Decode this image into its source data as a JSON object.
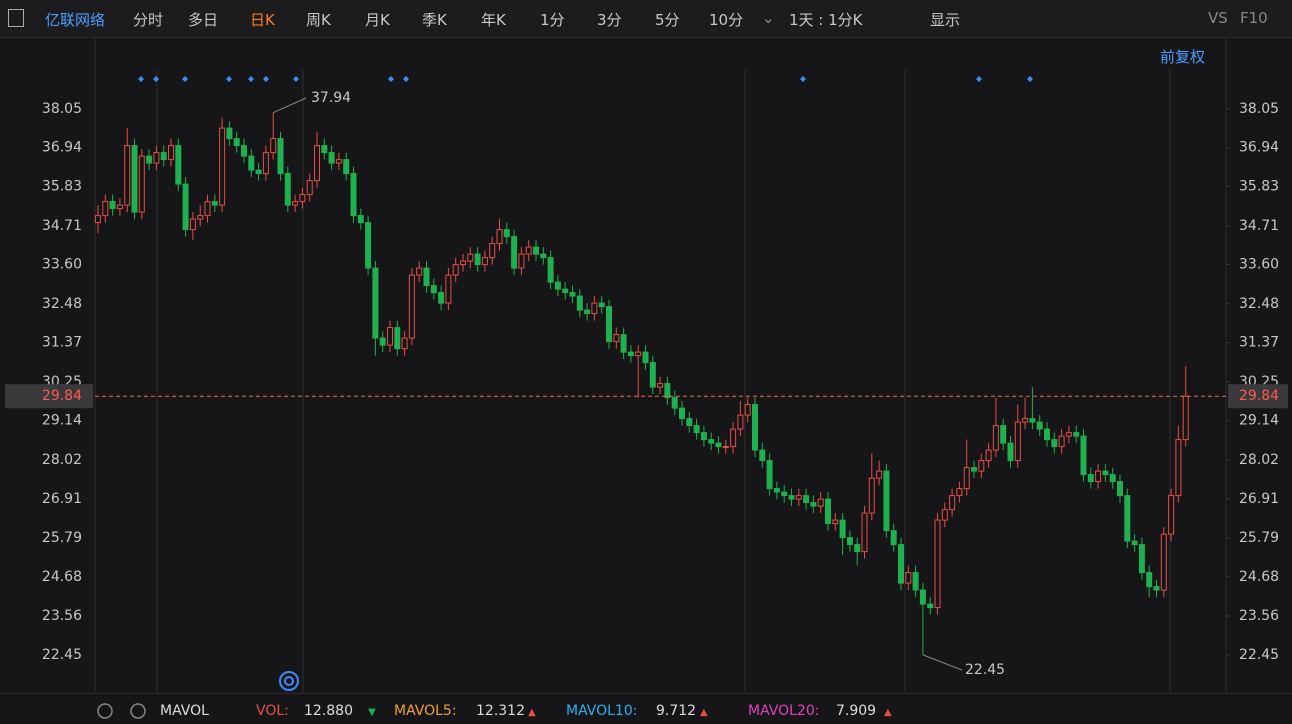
{
  "toolbar": {
    "stock": "亿联网络",
    "tabs": [
      "分时",
      "多日",
      "日K",
      "周K",
      "月K",
      "季K",
      "年K",
      "1分",
      "3分",
      "5分",
      "10分"
    ],
    "interval": "1天 : 1分K",
    "display": "显示",
    "vs": "VS",
    "f10": "F10",
    "adjust": "前复权"
  },
  "footer": {
    "indicator": "MAVOL",
    "items": [
      {
        "name": "VOL:",
        "value": "12.880"
      },
      {
        "name": "MAVOL5:",
        "value": "12.312"
      },
      {
        "name": "MAVOL10:",
        "value": "9.712"
      },
      {
        "name": "MAVOL20:",
        "value": "7.909"
      }
    ]
  },
  "chart_data": {
    "type": "candlestick",
    "up_color": "#e84e45",
    "down_color": "#1fb14f",
    "ylim": [
      21.36,
      39.16
    ],
    "yticks": [
      38.05,
      36.94,
      35.83,
      34.71,
      {
        "value": 33.6,
        "label": "33.60"
      },
      32.48,
      31.37,
      30.25,
      29.14,
      28.02,
      26.91,
      25.79,
      24.68,
      23.56,
      22.45
    ],
    "open": [
      34.8,
      35.0,
      35.4,
      35.2,
      35.3,
      37.0,
      35.1,
      36.7,
      36.5,
      36.8,
      36.6,
      37.0,
      35.9,
      34.6,
      34.9,
      35.0,
      35.4,
      35.3,
      37.5,
      37.2,
      37.0,
      36.7,
      36.3,
      36.2,
      36.8,
      37.2,
      36.2,
      35.3,
      35.4,
      35.6,
      36.0,
      37.0,
      36.8,
      36.5,
      36.6,
      36.2,
      35.0,
      34.8,
      33.5,
      31.5,
      31.3,
      31.8,
      31.2,
      31.5,
      33.3,
      33.5,
      33.0,
      32.8,
      32.5,
      33.3,
      33.6,
      33.7,
      33.9,
      33.6,
      33.8,
      34.2,
      34.6,
      34.4,
      33.5,
      33.9,
      34.1,
      33.9,
      33.8,
      33.1,
      32.9,
      32.8,
      32.7,
      32.3,
      32.2,
      32.5,
      32.4,
      31.4,
      31.6,
      31.1,
      31.0,
      31.1,
      30.8,
      30.1,
      30.2,
      29.8,
      29.5,
      29.2,
      29.0,
      28.8,
      28.6,
      28.5,
      28.4,
      28.4,
      28.9,
      29.3,
      29.6,
      28.3,
      28.0,
      27.2,
      27.1,
      27.0,
      26.9,
      27.0,
      26.8,
      26.7,
      26.9,
      26.2,
      26.3,
      25.8,
      25.6,
      25.4,
      26.5,
      27.5,
      27.7,
      26.0,
      25.6,
      24.5,
      24.8,
      24.3,
      23.9,
      23.8,
      26.3,
      26.6,
      27.0,
      27.2,
      27.8,
      27.7,
      28.0,
      28.3,
      29.0,
      28.5,
      28.0,
      29.1,
      29.2,
      29.1,
      28.9,
      28.6,
      28.4,
      28.7,
      28.8,
      28.7,
      27.6,
      27.4,
      27.7,
      27.6,
      27.4,
      27.0,
      25.7,
      25.6,
      24.8,
      24.4,
      24.3,
      25.9,
      27.0,
      28.6
    ],
    "high": [
      35.3,
      35.6,
      35.6,
      35.5,
      37.5,
      37.2,
      36.9,
      36.9,
      37.0,
      37.0,
      37.2,
      37.2,
      36.1,
      35.1,
      35.3,
      35.6,
      35.6,
      37.8,
      37.7,
      37.4,
      37.2,
      36.9,
      36.5,
      37.0,
      37.94,
      37.4,
      36.4,
      35.6,
      35.8,
      36.2,
      37.4,
      37.2,
      37.0,
      36.8,
      36.8,
      36.4,
      35.2,
      35.0,
      33.7,
      31.7,
      32.0,
      32.0,
      31.7,
      33.5,
      33.7,
      33.7,
      33.2,
      33.0,
      33.5,
      33.8,
      33.9,
      34.1,
      34.1,
      34.0,
      34.4,
      34.9,
      34.8,
      34.6,
      34.1,
      34.3,
      34.3,
      34.1,
      34.0,
      33.3,
      33.1,
      33.0,
      32.9,
      32.5,
      32.7,
      32.7,
      32.6,
      31.8,
      31.8,
      31.3,
      31.3,
      31.3,
      31.0,
      30.4,
      30.4,
      30.0,
      29.7,
      29.4,
      29.2,
      29.0,
      28.8,
      28.7,
      28.6,
      29.1,
      29.7,
      29.8,
      29.8,
      28.5,
      28.2,
      27.4,
      27.3,
      27.2,
      27.2,
      27.2,
      27.0,
      27.1,
      27.1,
      26.5,
      26.5,
      26.0,
      25.8,
      26.7,
      28.2,
      28.0,
      27.9,
      26.2,
      25.8,
      25.0,
      25.0,
      24.5,
      24.1,
      26.5,
      26.8,
      27.2,
      27.4,
      28.6,
      28.0,
      28.2,
      28.5,
      29.8,
      29.2,
      28.7,
      29.6,
      29.8,
      30.1,
      29.3,
      29.1,
      28.8,
      28.9,
      29.0,
      29.0,
      28.9,
      27.8,
      27.9,
      27.9,
      27.8,
      27.6,
      27.2,
      25.9,
      25.8,
      25.0,
      24.6,
      26.1,
      27.2,
      29.0,
      30.7
    ],
    "low": [
      34.5,
      34.8,
      35.0,
      35.0,
      35.1,
      34.9,
      34.9,
      36.3,
      36.3,
      36.4,
      36.4,
      35.7,
      34.4,
      34.3,
      34.7,
      34.8,
      35.1,
      35.1,
      37.0,
      36.8,
      36.5,
      36.1,
      36.0,
      36.0,
      36.6,
      36.0,
      35.1,
      35.1,
      35.2,
      35.4,
      35.8,
      36.6,
      36.3,
      36.3,
      36.0,
      34.8,
      34.6,
      33.3,
      31.0,
      31.1,
      31.1,
      31.0,
      31.0,
      31.3,
      33.1,
      32.8,
      32.6,
      32.3,
      32.3,
      33.1,
      33.4,
      33.5,
      33.4,
      33.4,
      33.6,
      34.0,
      34.2,
      33.3,
      33.3,
      33.7,
      33.7,
      33.6,
      32.9,
      32.7,
      32.6,
      32.5,
      32.1,
      32.0,
      32.0,
      32.2,
      31.2,
      31.2,
      30.9,
      30.8,
      29.8,
      30.6,
      29.9,
      29.9,
      29.6,
      29.3,
      29.0,
      28.8,
      28.6,
      28.4,
      28.3,
      28.2,
      28.2,
      28.2,
      28.7,
      29.1,
      28.1,
      27.8,
      27.0,
      26.9,
      26.8,
      26.7,
      26.7,
      26.6,
      26.5,
      26.5,
      26.0,
      26.0,
      25.3,
      25.4,
      25.0,
      25.2,
      26.3,
      27.3,
      25.8,
      25.4,
      24.3,
      24.3,
      24.1,
      22.45,
      23.6,
      23.6,
      26.1,
      26.4,
      26.8,
      27.0,
      27.5,
      27.5,
      27.8,
      28.1,
      28.3,
      27.8,
      27.8,
      28.9,
      28.9,
      28.7,
      28.4,
      28.2,
      28.2,
      28.5,
      28.5,
      27.4,
      27.2,
      27.2,
      27.4,
      27.2,
      26.8,
      25.5,
      25.4,
      24.6,
      24.1,
      24.1,
      24.1,
      25.7,
      26.8,
      28.4
    ],
    "close": [
      35.0,
      35.4,
      35.2,
      35.3,
      37.0,
      35.1,
      36.7,
      36.5,
      36.8,
      36.6,
      37.0,
      35.9,
      34.6,
      34.9,
      35.0,
      35.4,
      35.3,
      37.5,
      37.2,
      37.0,
      36.7,
      36.3,
      36.2,
      36.8,
      37.2,
      36.2,
      35.3,
      35.4,
      35.6,
      36.0,
      37.0,
      36.8,
      36.5,
      36.6,
      36.2,
      35.0,
      34.8,
      33.5,
      31.5,
      31.3,
      31.8,
      31.2,
      31.5,
      33.3,
      33.5,
      33.0,
      32.8,
      32.5,
      33.3,
      33.6,
      33.7,
      33.9,
      33.6,
      33.8,
      34.2,
      34.6,
      34.4,
      33.5,
      33.9,
      34.1,
      33.9,
      33.8,
      33.1,
      32.9,
      32.8,
      32.7,
      32.3,
      32.2,
      32.5,
      32.4,
      31.4,
      31.6,
      31.1,
      31.0,
      31.1,
      30.8,
      30.1,
      30.2,
      29.8,
      29.5,
      29.2,
      29.0,
      28.8,
      28.6,
      28.5,
      28.4,
      28.4,
      28.9,
      29.3,
      29.6,
      28.3,
      28.0,
      27.2,
      27.1,
      27.0,
      26.9,
      27.0,
      26.8,
      26.7,
      26.9,
      26.2,
      26.3,
      25.8,
      25.6,
      25.4,
      26.5,
      27.5,
      27.7,
      26.0,
      25.6,
      24.5,
      24.8,
      24.3,
      23.9,
      23.8,
      26.3,
      26.6,
      27.0,
      27.2,
      27.8,
      27.7,
      28.0,
      28.3,
      29.0,
      28.5,
      28.0,
      29.1,
      29.2,
      29.1,
      28.9,
      28.6,
      28.4,
      28.7,
      28.8,
      28.7,
      27.6,
      27.4,
      27.7,
      27.6,
      27.4,
      27.0,
      25.7,
      25.6,
      24.8,
      24.4,
      24.3,
      25.9,
      27.0,
      28.6,
      29.84
    ]
  }
}
